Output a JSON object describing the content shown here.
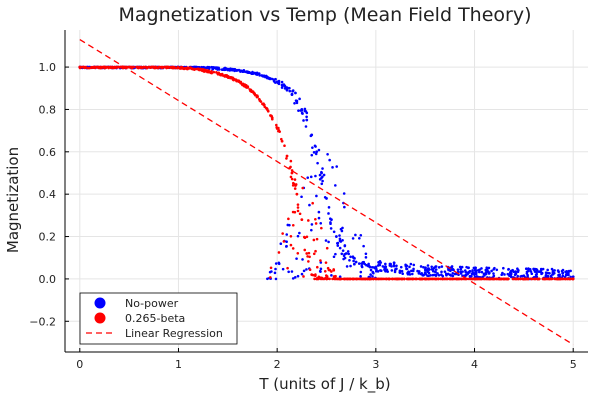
{
  "chart_data": {
    "type": "scatter",
    "title": "Magnetization vs Temp (Mean Field Theory)",
    "xlabel": "T (units of J / k_b)",
    "ylabel": "Magnetization",
    "xlim": [
      -0.15,
      5.15
    ],
    "ylim": [
      -0.345,
      1.175
    ],
    "x_ticks": [
      0,
      1,
      2,
      3,
      4,
      5
    ],
    "y_ticks": [
      -0.2,
      0.0,
      0.2,
      0.4,
      0.6,
      0.8,
      1.0
    ],
    "x_tick_labels": [
      "0",
      "1",
      "2",
      "3",
      "4",
      "5"
    ],
    "y_tick_labels": [
      "−0.2",
      "0.0",
      "0.2",
      "0.4",
      "0.6",
      "0.8",
      "1.0"
    ],
    "grid": true,
    "legend_position": "bottom-left",
    "series": [
      {
        "name": "No-power",
        "kind": "scatter",
        "color": "#0000ff",
        "points": [
          [
            0.0,
            1.0
          ],
          [
            0.25,
            1.0
          ],
          [
            0.5,
            1.0
          ],
          [
            0.75,
            1.0
          ],
          [
            1.0,
            1.0
          ],
          [
            1.2,
            0.998
          ],
          [
            1.4,
            0.993
          ],
          [
            1.5,
            0.99
          ],
          [
            1.6,
            0.985
          ],
          [
            1.7,
            0.978
          ],
          [
            1.8,
            0.968
          ],
          [
            1.9,
            0.952
          ],
          [
            2.0,
            0.93
          ],
          [
            2.05,
            0.915
          ],
          [
            2.1,
            0.895
          ],
          [
            2.15,
            0.87
          ],
          [
            2.2,
            0.84
          ],
          [
            2.25,
            0.8
          ],
          [
            2.3,
            0.75
          ],
          [
            2.35,
            0.68
          ],
          [
            2.4,
            0.6
          ],
          [
            2.45,
            0.5
          ],
          [
            2.5,
            0.38
          ],
          [
            2.55,
            0.28
          ],
          [
            2.6,
            0.2
          ],
          [
            2.7,
            0.12
          ],
          [
            2.8,
            0.08
          ],
          [
            3.0,
            0.05
          ],
          [
            3.5,
            0.03
          ],
          [
            4.0,
            0.02
          ],
          [
            4.5,
            0.015
          ],
          [
            5.0,
            0.01
          ]
        ]
      },
      {
        "name": "0.265-beta",
        "kind": "scatter",
        "color": "#ff0000",
        "points": [
          [
            0.0,
            1.0
          ],
          [
            0.25,
            1.0
          ],
          [
            0.5,
            1.0
          ],
          [
            0.75,
            1.0
          ],
          [
            1.0,
            0.998
          ],
          [
            1.2,
            0.99
          ],
          [
            1.4,
            0.97
          ],
          [
            1.5,
            0.955
          ],
          [
            1.6,
            0.935
          ],
          [
            1.7,
            0.905
          ],
          [
            1.8,
            0.86
          ],
          [
            1.9,
            0.8
          ],
          [
            1.95,
            0.76
          ],
          [
            2.0,
            0.71
          ],
          [
            2.05,
            0.65
          ],
          [
            2.1,
            0.58
          ],
          [
            2.15,
            0.5
          ],
          [
            2.2,
            0.4
          ],
          [
            2.25,
            0.28
          ],
          [
            2.3,
            0.12
          ],
          [
            2.35,
            0.02
          ],
          [
            2.4,
            0.0
          ],
          [
            2.5,
            0.0
          ],
          [
            3.0,
            0.0
          ],
          [
            3.5,
            0.0
          ],
          [
            4.0,
            0.0
          ],
          [
            4.5,
            0.0
          ],
          [
            5.0,
            0.0
          ]
        ]
      },
      {
        "name": "Linear Regression",
        "kind": "line",
        "dashed": true,
        "color": "#ff0000",
        "points": [
          [
            0.0,
            1.13
          ],
          [
            5.0,
            -0.31
          ]
        ]
      }
    ]
  }
}
